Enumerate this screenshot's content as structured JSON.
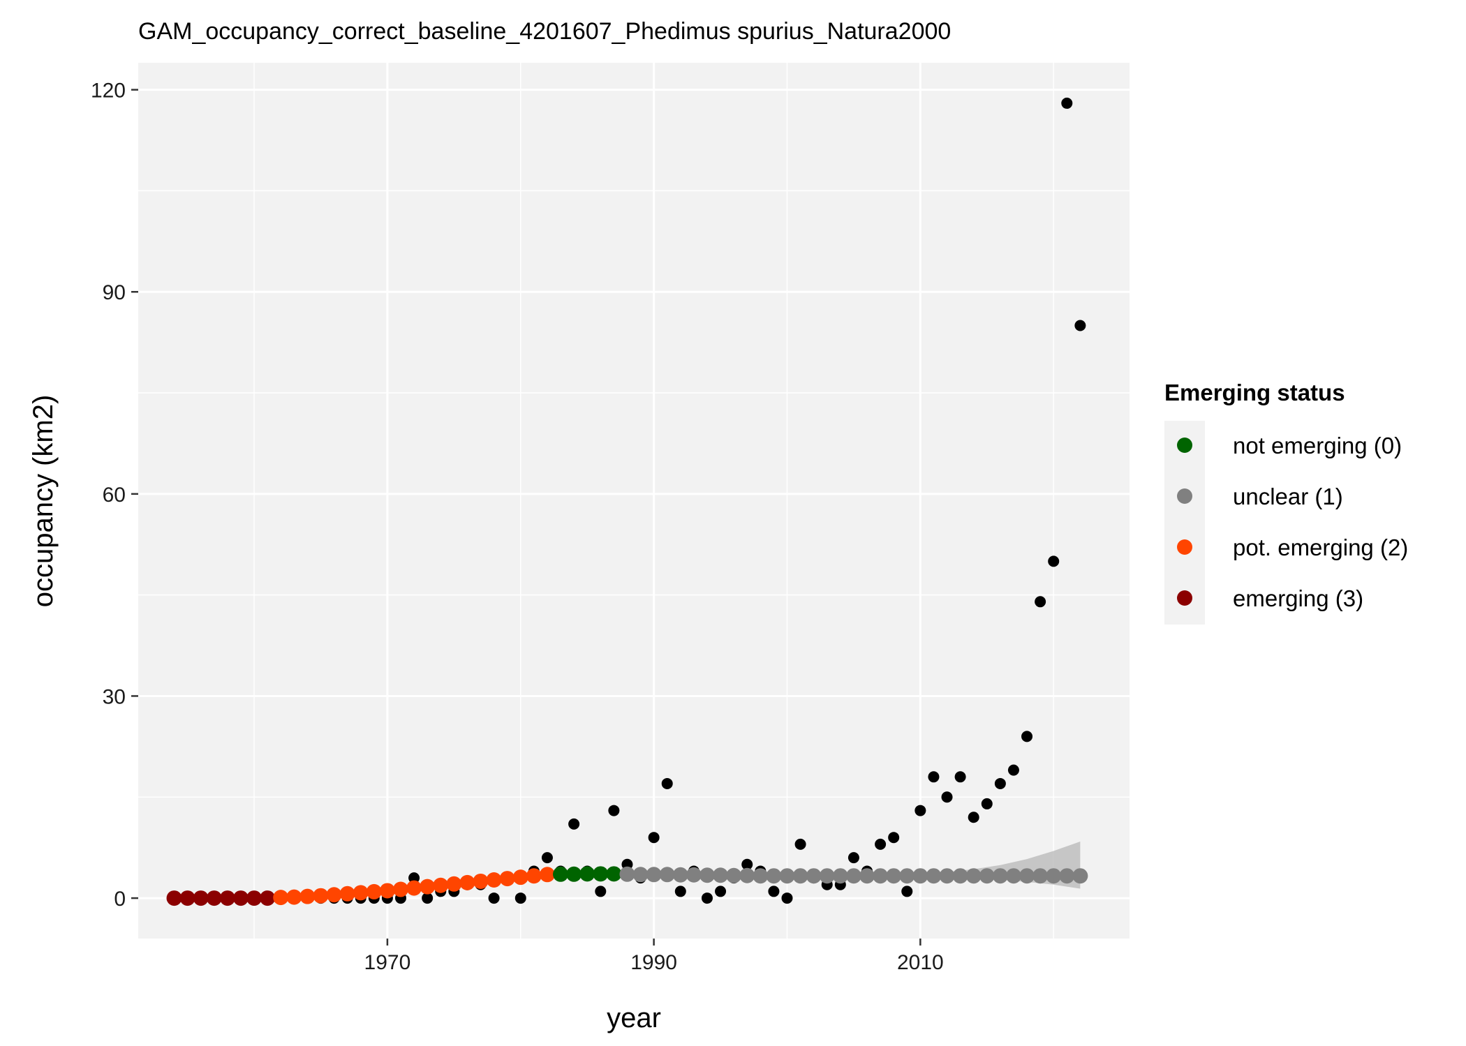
{
  "chart_data": {
    "type": "scatter",
    "title": "GAM_occupancy_correct_baseline_4201607_Phedimus spurius_Natura2000",
    "xlabel": "year",
    "ylabel": "occupancy (km2)",
    "xlim": [
      1951.3,
      2025.7
    ],
    "ylim": [
      -6,
      124
    ],
    "x_ticks": [
      1970,
      1990,
      2010
    ],
    "y_ticks": [
      0,
      30,
      60,
      90,
      120
    ],
    "x_tick_labels": [
      "1970",
      "1990",
      "2010"
    ],
    "y_tick_labels": [
      "0",
      "30",
      "60",
      "90",
      "120"
    ],
    "grid": true,
    "panel_background": "#f2f2f2",
    "legend": {
      "title": "Emerging status",
      "placement": "right",
      "entries": [
        {
          "label": "not emerging (0)",
          "color": "#006400"
        },
        {
          "label": "unclear (1)",
          "color": "#808080"
        },
        {
          "label": "pot. emerging (2)",
          "color": "#ff4500"
        },
        {
          "label": "emerging (3)",
          "color": "#8b0000"
        }
      ]
    },
    "observed": {
      "color": "#000000",
      "x": [
        1954,
        1955,
        1956,
        1957,
        1958,
        1959,
        1960,
        1961,
        1962,
        1963,
        1964,
        1965,
        1966,
        1967,
        1968,
        1969,
        1970,
        1971,
        1972,
        1973,
        1974,
        1975,
        1976,
        1977,
        1978,
        1979,
        1980,
        1981,
        1982,
        1983,
        1984,
        1985,
        1986,
        1987,
        1988,
        1989,
        1990,
        1991,
        1992,
        1993,
        1994,
        1995,
        1996,
        1997,
        1998,
        1999,
        2000,
        2001,
        2002,
        2003,
        2004,
        2005,
        2006,
        2007,
        2008,
        2009,
        2010,
        2011,
        2012,
        2013,
        2014,
        2015,
        2016,
        2017,
        2018,
        2019,
        2020,
        2021,
        2022
      ],
      "y": [
        0,
        0,
        0,
        0,
        0,
        0,
        0,
        0,
        0,
        0,
        0,
        0,
        0,
        0,
        0,
        0,
        0,
        0,
        3,
        0,
        1,
        1,
        2,
        2,
        0,
        3,
        0,
        4,
        6,
        4,
        11,
        4,
        1,
        13,
        5,
        3,
        9,
        17,
        1,
        4,
        0,
        1,
        3,
        5,
        4,
        1,
        0,
        8,
        3,
        2,
        2,
        6,
        4,
        8,
        9,
        1,
        13,
        18,
        15,
        18,
        12,
        14,
        17,
        19,
        24,
        44,
        50,
        118,
        85
      ]
    },
    "fitted": {
      "x": [
        1954,
        1955,
        1956,
        1957,
        1958,
        1959,
        1960,
        1961,
        1962,
        1963,
        1964,
        1965,
        1966,
        1967,
        1968,
        1969,
        1970,
        1971,
        1972,
        1973,
        1974,
        1975,
        1976,
        1977,
        1978,
        1979,
        1980,
        1981,
        1982,
        1983,
        1984,
        1985,
        1986,
        1987,
        1988,
        1989,
        1990,
        1991,
        1992,
        1993,
        1994,
        1995,
        1996,
        1997,
        1998,
        1999,
        2000,
        2001,
        2002,
        2003,
        2004,
        2005,
        2006,
        2007,
        2008,
        2009,
        2010,
        2011,
        2012,
        2013,
        2014,
        2015,
        2016,
        2017,
        2018,
        2019,
        2020,
        2021,
        2022
      ],
      "y": [
        0,
        0,
        0,
        0,
        0,
        0,
        0,
        0,
        0.1,
        0.15,
        0.25,
        0.35,
        0.5,
        0.65,
        0.8,
        0.95,
        1.1,
        1.3,
        1.5,
        1.7,
        1.9,
        2.1,
        2.3,
        2.5,
        2.7,
        2.9,
        3.1,
        3.3,
        3.5,
        3.55,
        3.55,
        3.6,
        3.6,
        3.6,
        3.55,
        3.5,
        3.5,
        3.5,
        3.45,
        3.45,
        3.4,
        3.4,
        3.35,
        3.35,
        3.3,
        3.3,
        3.3,
        3.3,
        3.3,
        3.3,
        3.3,
        3.3,
        3.3,
        3.3,
        3.3,
        3.3,
        3.3,
        3.3,
        3.3,
        3.3,
        3.3,
        3.3,
        3.3,
        3.3,
        3.3,
        3.3,
        3.3,
        3.3,
        3.3
      ],
      "status": [
        3,
        3,
        3,
        3,
        3,
        3,
        3,
        3,
        2,
        2,
        2,
        2,
        2,
        2,
        2,
        2,
        2,
        2,
        2,
        2,
        2,
        2,
        2,
        2,
        2,
        2,
        2,
        2,
        2,
        0,
        0,
        0,
        0,
        0,
        1,
        1,
        1,
        1,
        1,
        1,
        1,
        1,
        1,
        1,
        1,
        1,
        1,
        1,
        1,
        1,
        1,
        1,
        1,
        1,
        1,
        1,
        1,
        1,
        1,
        1,
        1,
        1,
        1,
        1,
        1,
        1,
        1,
        1,
        1
      ]
    },
    "confidence_band": {
      "color": "#bebebe",
      "x": [
        2008,
        2010,
        2012,
        2014,
        2016,
        2018,
        2020,
        2022
      ],
      "lower": [
        3.2,
        3.1,
        3.0,
        2.9,
        2.7,
        2.4,
        2.0,
        1.4
      ],
      "upper": [
        3.4,
        3.6,
        3.9,
        4.3,
        4.9,
        5.8,
        7.0,
        8.4
      ]
    }
  }
}
